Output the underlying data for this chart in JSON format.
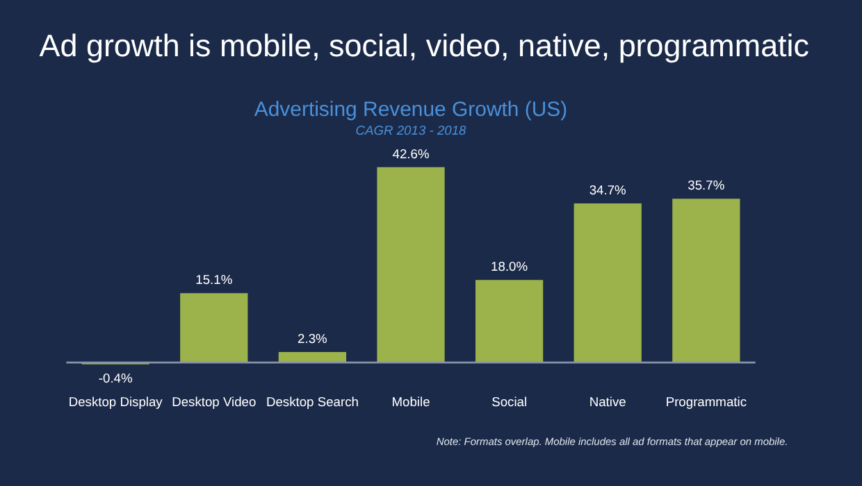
{
  "chart_data": {
    "type": "bar",
    "title": "Ad growth is mobile, social, video, native, programmatic",
    "subtitle": "Advertising Revenue Growth (US)",
    "annotations": [
      "CAGR 2013 - 2018",
      "Note: Formats overlap. Mobile includes all ad formats that appear on mobile."
    ],
    "categories": [
      "Desktop Display",
      "Desktop Video",
      "Desktop Search",
      "Mobile",
      "Social",
      "Native",
      "Programmatic"
    ],
    "values": [
      -0.4,
      15.1,
      2.3,
      42.6,
      18.0,
      34.7,
      35.7
    ],
    "value_labels": [
      "-0.4%",
      "15.1%",
      "2.3%",
      "42.6%",
      "18.0%",
      "34.7%",
      "35.7%"
    ],
    "color": "#9bb34a"
  }
}
